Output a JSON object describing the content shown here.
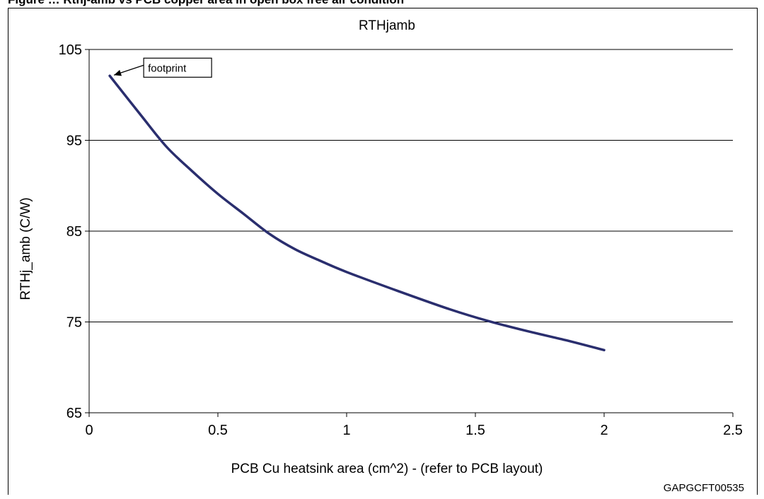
{
  "chart_data": {
    "type": "line",
    "title": "RTHjamb",
    "xlabel": "PCB Cu heatsink area (cm^2) - (refer to PCB layout)",
    "ylabel": "RTHj_amb (C/W)",
    "xlim": [
      0,
      2.5
    ],
    "ylim": [
      65,
      105
    ],
    "x_ticks": [
      "0",
      "0.5",
      "1",
      "1.5",
      "2",
      "2.5"
    ],
    "y_ticks": [
      "65",
      "75",
      "85",
      "95",
      "105"
    ],
    "grid": "horizontal",
    "legend": "none",
    "series": [
      {
        "color": "#2a2e6e",
        "x": [
          0.08,
          0.2,
          0.3,
          0.4,
          0.5,
          0.6,
          0.7,
          0.8,
          0.9,
          1.0,
          1.2,
          1.4,
          1.55,
          1.7,
          1.85,
          2.0
        ],
        "y": [
          102.1,
          97.8,
          94.3,
          91.6,
          89.1,
          86.9,
          84.7,
          83.0,
          81.7,
          80.5,
          78.4,
          76.4,
          75.1,
          74.0,
          73.0,
          71.9
        ]
      }
    ],
    "annotations": [
      {
        "text": "footprint",
        "x": 0.08,
        "y": 102.1
      }
    ],
    "footer_id": "GAPGCFT00535"
  },
  "caption_fragment": "Figure … Rthj-amb vs PCB copper area in open box free air condition"
}
